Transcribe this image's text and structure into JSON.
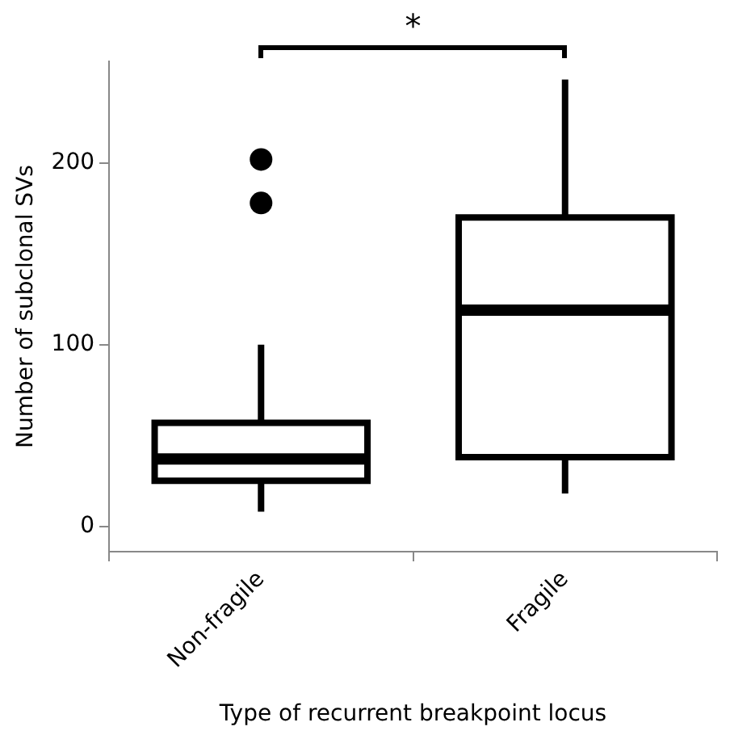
{
  "chart_data": {
    "type": "box",
    "xlabel": "Type of recurrent breakpoint locus",
    "ylabel": "Number of subclonal SVs",
    "categories": [
      "Non-fragile",
      "Fragile"
    ],
    "boxes": [
      {
        "low": 8,
        "q1": 25,
        "median": 37,
        "q3": 57,
        "high": 100,
        "outliers": [
          202,
          178
        ]
      },
      {
        "low": 18,
        "q1": 38,
        "median": 119,
        "q3": 170,
        "high": 246
      }
    ],
    "color": "#000000",
    "ylim": [
      -14,
      256
    ],
    "yticks": [
      0,
      100,
      200
    ],
    "grid": false,
    "legend": false,
    "annotations": [
      "*"
    ]
  }
}
